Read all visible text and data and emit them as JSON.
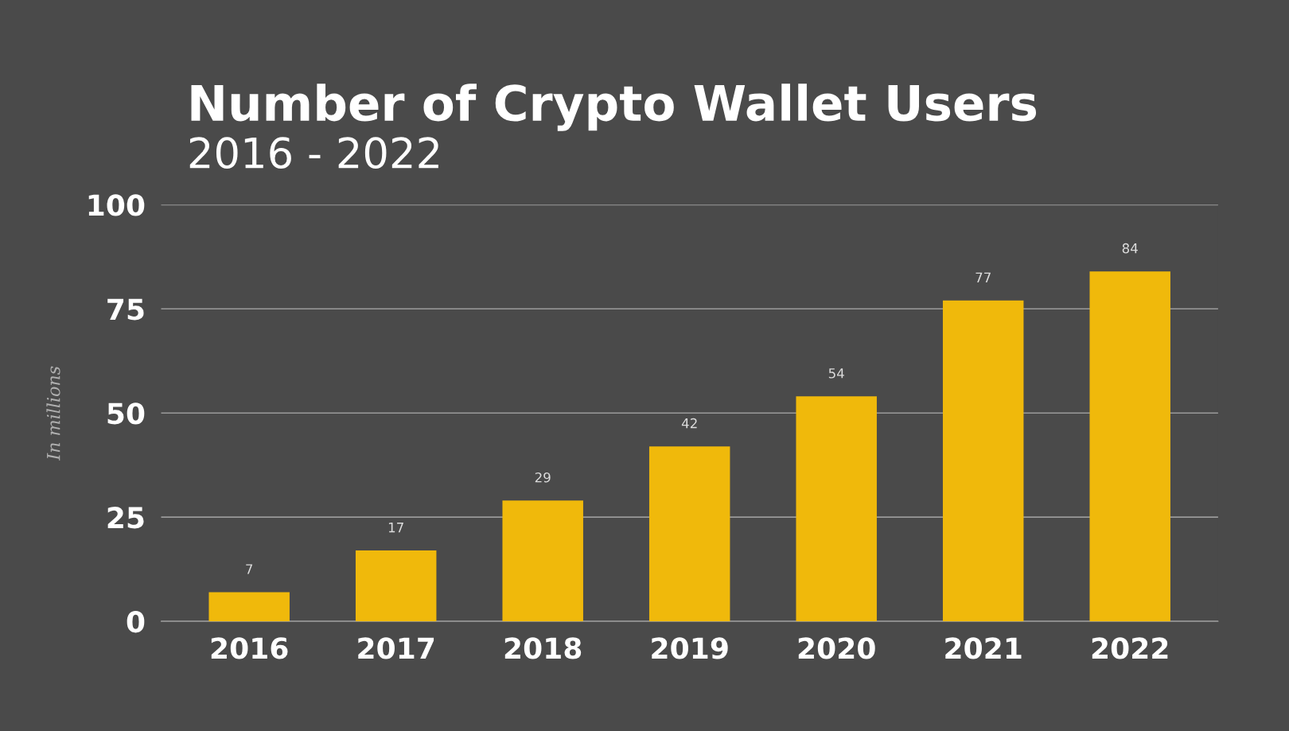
{
  "chart_data": {
    "type": "bar",
    "title": "Number of Crypto Wallet Users",
    "subtitle": "2016 - 2022",
    "ylabel": "In millions",
    "categories": [
      "2016",
      "2017",
      "2018",
      "2019",
      "2020",
      "2021",
      "2022"
    ],
    "values": [
      7,
      17,
      29,
      42,
      54,
      77,
      84
    ],
    "color": "#f0b90b",
    "data_labels": true,
    "ylim": [
      0,
      100
    ],
    "yticks": [
      0,
      25,
      50,
      75,
      100
    ],
    "grid": "y"
  }
}
